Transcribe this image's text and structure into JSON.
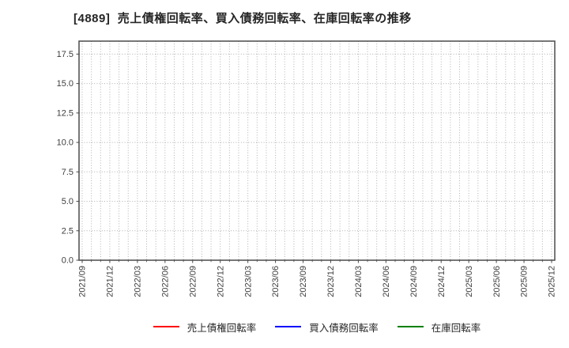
{
  "chart_data": {
    "type": "line",
    "title": "[4889]  売上債権回転率、買入債務回転率、在庫回転率の推移",
    "x_tick_labels": [
      "2021/09",
      "2021/12",
      "2022/03",
      "2022/06",
      "2022/09",
      "2022/12",
      "2023/03",
      "2023/06",
      "2023/09",
      "2023/12",
      "2024/03",
      "2024/06",
      "2024/09",
      "2024/12",
      "2025/03",
      "2025/06",
      "2025/09",
      "2025/12"
    ],
    "x_minor_divisions_per_interval": 3,
    "y_tick_labels": [
      "0.0",
      "2.5",
      "5.0",
      "7.5",
      "10.0",
      "12.5",
      "15.0",
      "17.5"
    ],
    "ylim": [
      0,
      18.6
    ],
    "grid": true,
    "grid_style": "dotted",
    "plot_empty": true,
    "legend_position": "bottom-center",
    "colors": {
      "grid": "#b0b0b0",
      "axis_frame": "#4a4a4a",
      "tick_labels": "#3d3d3d",
      "title": "#262626",
      "background": "#ffffff"
    },
    "series": [
      {
        "name": "売上債権回転率",
        "color": "#ff0000",
        "values": []
      },
      {
        "name": "買入債務回転率",
        "color": "#0000ff",
        "values": []
      },
      {
        "name": "在庫回転率",
        "color": "#008000",
        "values": []
      }
    ]
  }
}
